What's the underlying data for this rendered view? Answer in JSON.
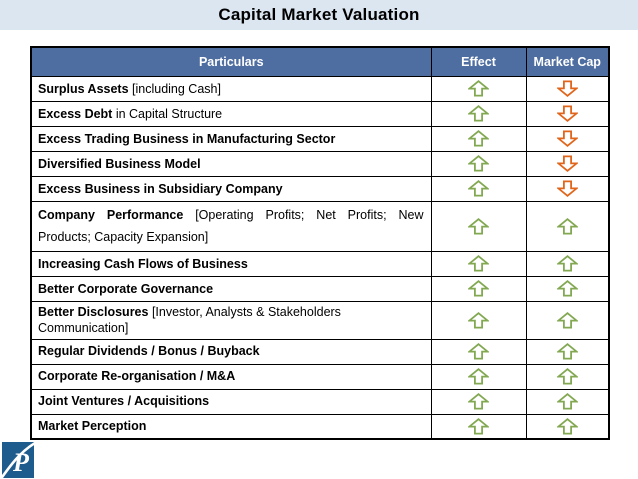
{
  "slide": {
    "title": "Capital Market Valuation",
    "colors": {
      "title_band_bg": "#dce6f1",
      "table_header_bg": "#4e6da0",
      "table_header_text": "#ffffff",
      "border": "#000000",
      "up_arrow": "#82a852",
      "down_arrow": "#e0661c",
      "logo_bg": "#1e5c8d"
    }
  },
  "table": {
    "headers": {
      "particulars": "Particulars",
      "effect": "Effect",
      "market_cap": "Market Cap"
    },
    "arrow_colors": {
      "up": "#82a852",
      "down": "#e0661c"
    },
    "rows": [
      {
        "bold": "Surplus Assets",
        "rest": " [including Cash]",
        "effect": "up",
        "market_cap": "down",
        "tall": false
      },
      {
        "bold": "Excess Debt",
        "rest": " in Capital Structure",
        "effect": "up",
        "market_cap": "down",
        "tall": false
      },
      {
        "bold": "Excess Trading Business in Manufacturing Sector",
        "rest": "",
        "effect": "up",
        "market_cap": "down",
        "tall": false
      },
      {
        "bold": "Diversified Business Model",
        "rest": "",
        "effect": "up",
        "market_cap": "down",
        "tall": false
      },
      {
        "bold": "Excess Business in Subsidiary Company",
        "rest": "",
        "effect": "up",
        "market_cap": "down",
        "tall": false
      },
      {
        "bold": "Company Performance",
        "rest": " [Operating Profits; Net Profits; New Products; Capacity Expansion]",
        "effect": "up",
        "market_cap": "up",
        "tall": true
      },
      {
        "bold": "Increasing Cash Flows of Business",
        "rest": "",
        "effect": "up",
        "market_cap": "up",
        "tall": false
      },
      {
        "bold": "Better Corporate Governance",
        "rest": "",
        "effect": "up",
        "market_cap": "up",
        "tall": false
      },
      {
        "bold": "Better Disclosures",
        "rest": " [Investor, Analysts & Stakeholders Communication]",
        "effect": "up",
        "market_cap": "up",
        "tall": false
      },
      {
        "bold": "Regular Dividends / Bonus / Buyback",
        "rest": "",
        "effect": "up",
        "market_cap": "up",
        "tall": false
      },
      {
        "bold": "Corporate Re-organisation / M&A",
        "rest": "",
        "effect": "up",
        "market_cap": "up",
        "tall": false
      },
      {
        "bold": "Joint Ventures / Acquisitions",
        "rest": "",
        "effect": "up",
        "market_cap": "up",
        "tall": false
      },
      {
        "bold": "Market Perception",
        "rest": "",
        "effect": "up",
        "market_cap": "up",
        "tall": false
      }
    ]
  },
  "footer": {
    "logo_letter": "P"
  }
}
